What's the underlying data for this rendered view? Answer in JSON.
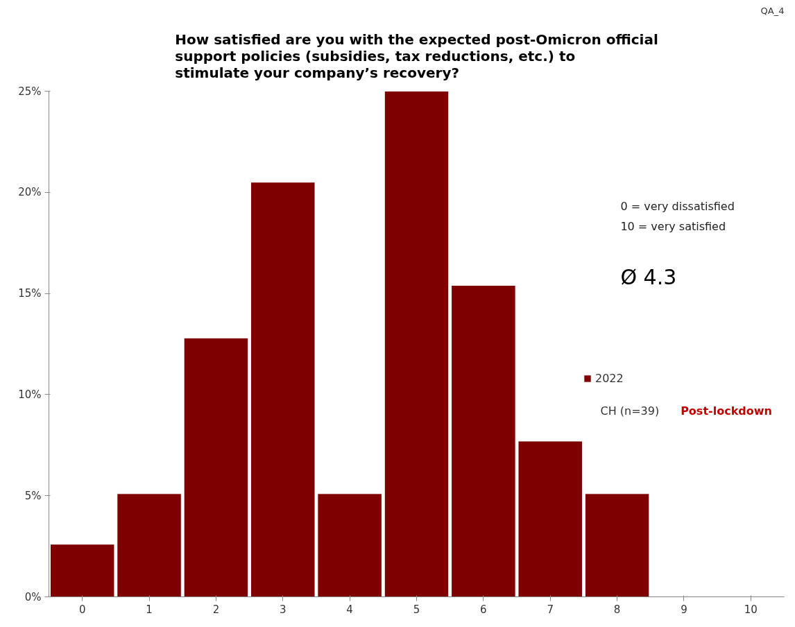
{
  "chart_data": {
    "type": "bar",
    "title": "How satisfied are you with the expected post-Omicron official support policies (subsidies, tax reductions, etc.) to stimulate your company’s recovery?",
    "categories": [
      "0",
      "1",
      "2",
      "3",
      "4",
      "5",
      "6",
      "7",
      "8",
      "9",
      "10"
    ],
    "series": [
      {
        "name": "2022",
        "color": "#7f0000",
        "values": [
          2.6,
          5.1,
          12.8,
          20.5,
          5.1,
          25,
          15.4,
          7.7,
          5.1,
          null,
          null
        ]
      }
    ],
    "ylim": [
      0,
      25
    ],
    "yticks": [
      {
        "value": 0,
        "label": "0%"
      },
      {
        "value": 5,
        "label": "5%"
      },
      {
        "value": 10,
        "label": "10%"
      },
      {
        "value": 15,
        "label": "15%"
      },
      {
        "value": 20,
        "label": "20%"
      },
      {
        "value": 25,
        "label": "25%"
      }
    ],
    "grid": false,
    "legend": "right",
    "annotations": [
      "QA_4",
      "0 = very dissatisfied",
      "10 = very satisfied",
      "Ø 4.3",
      "CH (n=39)",
      "Post-lockdown"
    ]
  }
}
